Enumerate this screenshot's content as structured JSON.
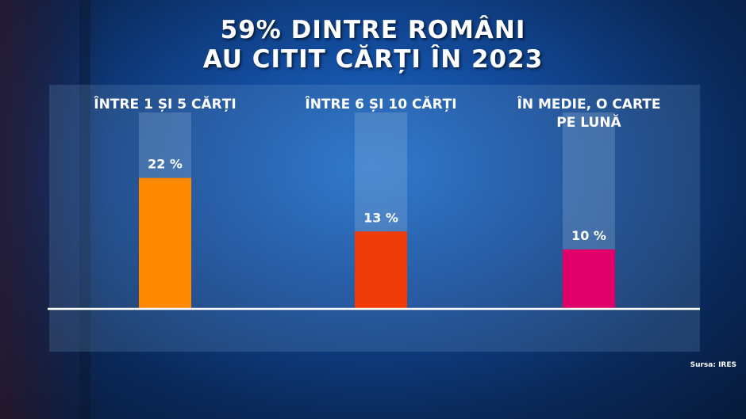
{
  "title_line1": "59% DINTRE ROMÂNI",
  "title_line2": "AU CITIT CĂRȚI ÎN 2023",
  "source": "Sursa: IRES",
  "chart_data": {
    "type": "bar",
    "categories": [
      [
        "ÎNTRE 1 ȘI 5 CĂRȚI"
      ],
      [
        "ÎNTRE 6 ȘI 10 CĂRȚI"
      ],
      [
        "ÎN MEDIE, O CARTE",
        "PE LUNĂ"
      ]
    ],
    "values": [
      22,
      13,
      10
    ],
    "value_labels": [
      "22 %",
      "13 %",
      "10 %"
    ],
    "colors": [
      "#ff8a00",
      "#f03c08",
      "#e0006a"
    ],
    "ylim": [
      0,
      33
    ],
    "grid": false,
    "legend": "none"
  }
}
